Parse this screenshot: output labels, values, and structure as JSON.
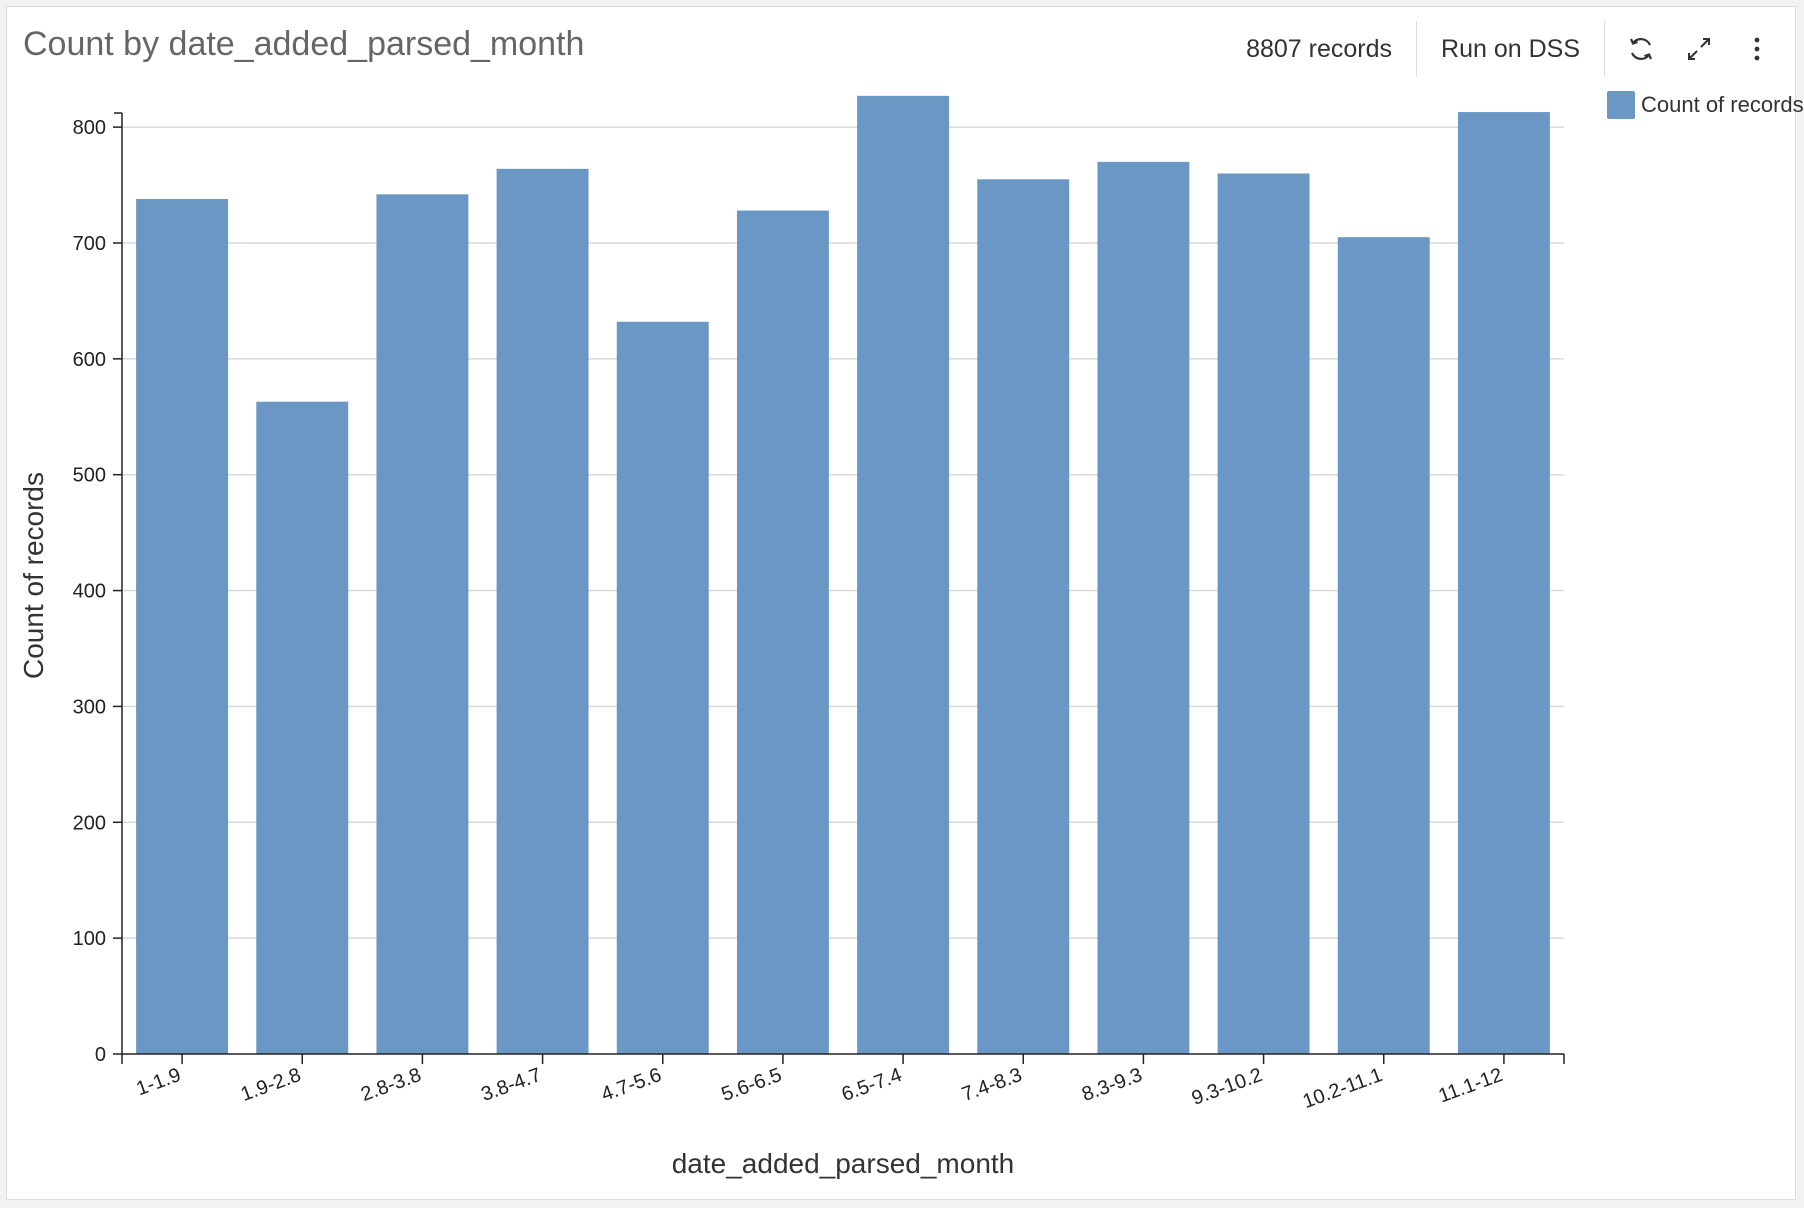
{
  "header": {
    "title": "Count by date_added_parsed_month",
    "records_label": "8807 records",
    "run_label": "Run on DSS",
    "icons": [
      "refresh-icon",
      "expand-icon",
      "more-vertical-icon"
    ]
  },
  "legend": {
    "label": "Count of records",
    "placement": "top-right"
  },
  "colors": {
    "bar": "#6b97c4",
    "grid": "#d9d9d9",
    "axis": "#222222"
  },
  "chart_data": {
    "type": "bar",
    "title": "Count by date_added_parsed_month",
    "xlabel": "date_added_parsed_month",
    "ylabel": "Count of records",
    "categories": [
      "1-1.9",
      "1.9-2.8",
      "2.8-3.8",
      "3.8-4.7",
      "4.7-5.6",
      "5.6-6.5",
      "6.5-7.4",
      "7.4-8.3",
      "8.3-9.3",
      "9.3-10.2",
      "10.2-11.1",
      "11.1-12"
    ],
    "series": [
      {
        "name": "Count of records",
        "values": [
          738,
          563,
          742,
          764,
          632,
          728,
          827,
          755,
          770,
          760,
          705,
          813
        ]
      }
    ],
    "ylim": [
      0,
      800
    ],
    "yticks": [
      0,
      100,
      200,
      300,
      400,
      500,
      600,
      700,
      800
    ],
    "grid": true,
    "legend": "top-right"
  }
}
